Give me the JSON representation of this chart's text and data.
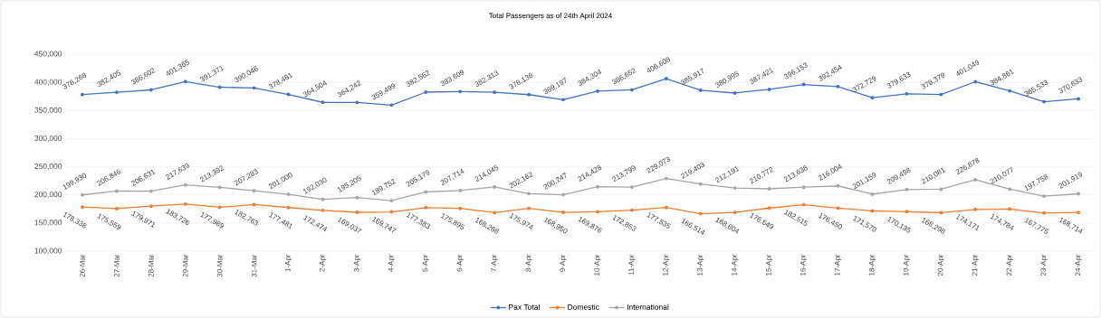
{
  "chart_data": {
    "type": "line",
    "title": "Total Passengers as of 24th April 2024",
    "categories": [
      "26-Mar",
      "27-Mar",
      "28-Mar",
      "29-Mar",
      "30-Mar",
      "31-Mar",
      "1-Apr",
      "2-Apr",
      "3-Apr",
      "4-Apr",
      "5-Apr",
      "6-Apr",
      "7-Apr",
      "8-Apr",
      "9-Apr",
      "10-Apr",
      "11-Apr",
      "12-Apr",
      "13-Apr",
      "14-Apr",
      "15-Apr",
      "16-Apr",
      "17-Apr",
      "18-Apr",
      "19-Apr",
      "20-Apr",
      "21-Apr",
      "22-Apr",
      "23-Apr",
      "24-Apr"
    ],
    "series": [
      {
        "name": "Pax Total",
        "color": "#4472c4",
        "values": [
          378268,
          382405,
          386602,
          401365,
          391371,
          390046,
          378481,
          364504,
          364242,
          359499,
          382562,
          383609,
          382313,
          378136,
          369197,
          384304,
          386652,
          406608,
          385917,
          380995,
          387421,
          396153,
          392454,
          372729,
          379633,
          378379,
          401049,
          384861,
          365533,
          370633
        ],
        "value_labels": [
          "378,268",
          "382,405",
          "386,602",
          "401,365",
          "391,371",
          "390,046",
          "378,481",
          "364,504",
          "364,242",
          "359,499",
          "382,562",
          "383,609",
          "382,313",
          "378,136",
          "369,197",
          "384,304",
          "386,652",
          "406,608",
          "385,917",
          "380,995",
          "387,421",
          "396,153",
          "392,454",
          "372,729",
          "379,633",
          "378,379",
          "401,049",
          "384,861",
          "365,533",
          "370,633"
        ]
      },
      {
        "name": "Domestic",
        "color": "#ed7d31",
        "values": [
          178338,
          175559,
          179971,
          183726,
          177989,
          182763,
          177481,
          172474,
          169037,
          169747,
          177383,
          175895,
          168268,
          175974,
          168950,
          169876,
          172853,
          177535,
          166514,
          168804,
          176649,
          182515,
          176450,
          171570,
          170135,
          168298,
          174171,
          174784,
          167775,
          168714
        ],
        "value_labels": [
          "178,338",
          "175,559",
          "179,971",
          "183,726",
          "177,989",
          "182,763",
          "177,481",
          "172,474",
          "169,037",
          "169,747",
          "177,383",
          "175,895",
          "168,268",
          "175,974",
          "168,950",
          "169,876",
          "172,853",
          "177,535",
          "166,514",
          "168,804",
          "176,649",
          "182,515",
          "176,450",
          "171,570",
          "170,135",
          "168,298",
          "174,171",
          "174,784",
          "167,775",
          "168,714"
        ]
      },
      {
        "name": "International",
        "color": "#a5a5a5",
        "values": [
          199930,
          206846,
          206631,
          217639,
          213382,
          207283,
          201000,
          192030,
          195205,
          189752,
          205179,
          207714,
          214045,
          202162,
          200247,
          214428,
          213799,
          229073,
          219403,
          212191,
          210772,
          213638,
          216004,
          201159,
          209498,
          210081,
          226878,
          210077,
          197758,
          201919
        ],
        "value_labels": [
          "199,930",
          "206,846",
          "206,631",
          "217,639",
          "213,382",
          "207,283",
          "201,000",
          "192,030",
          "195,205",
          "189,752",
          "205,179",
          "207,714",
          "214,045",
          "202,162",
          "200,247",
          "214,428",
          "213,799",
          "229,073",
          "219,403",
          "212,191",
          "210,772",
          "213,638",
          "216,004",
          "201,159",
          "209,498",
          "210,081",
          "226,878",
          "210,077",
          "197,758",
          "201,919"
        ]
      }
    ],
    "ylim": [
      100000,
      450000
    ],
    "yticks": [
      {
        "value": 100000,
        "label": "100,000"
      },
      {
        "value": 150000,
        "label": "150,000"
      },
      {
        "value": 200000,
        "label": "200,000"
      },
      {
        "value": 250000,
        "label": "250,000"
      },
      {
        "value": 300000,
        "label": "300,000"
      },
      {
        "value": 350000,
        "label": "350,000"
      },
      {
        "value": 400000,
        "label": "400,000"
      },
      {
        "value": 450000,
        "label": "450,000"
      }
    ],
    "grid": "y",
    "legend": "bottom",
    "marker": "circle",
    "line_style": "solid"
  }
}
